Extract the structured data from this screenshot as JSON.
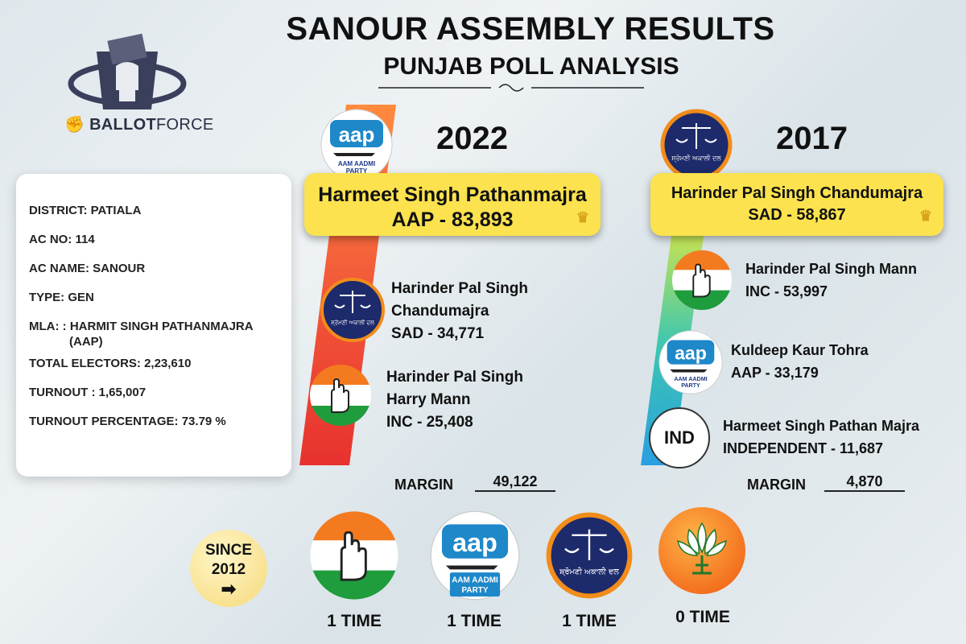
{
  "header": {
    "title": "SANOUR ASSEMBLY RESULTS",
    "subtitle": "PUNJAB POLL ANALYSIS"
  },
  "brand": {
    "part1": "BALLOT",
    "part2": "FORCE"
  },
  "info": {
    "district": "DISTRICT: PATIALA",
    "ac_no": "AC NO: 114",
    "ac_name": "AC NAME: SANOUR",
    "type": "TYPE:  GEN",
    "mla_line1": "MLA:  : HARMIT SINGH PATHANMAJRA",
    "mla_line2": "(AAP)",
    "electors": "TOTAL ELECTORS:  2,23,610",
    "turnout": "TURNOUT : 1,65,007",
    "turnout_pct": "TURNOUT PERCENTAGE: 73.79   %"
  },
  "logos": {
    "aap_main": "aap",
    "aap_small1": "AAM AADMI",
    "aap_small2": "PARTY",
    "sad_text": "ਸ਼੍ਰੋਮਣੀ ਅਕਾਲੀ ਦਲ",
    "ind": "IND"
  },
  "y2022": {
    "year": "2022",
    "winner_name": "Harmeet Singh Pathanmajra",
    "winner_votes": "AAP - 83,893",
    "others": [
      {
        "line1": "Harinder Pal Singh",
        "line2": "Chandumajra",
        "line3": "SAD - 34,771"
      },
      {
        "line1": "Harinder Pal Singh",
        "line2": "Harry Mann",
        "line3": "INC - 25,408"
      }
    ],
    "margin_label": "MARGIN",
    "margin_value": "49,122"
  },
  "y2017": {
    "year": "2017",
    "winner_name": "Harinder Pal Singh Chandumajra",
    "winner_votes": "SAD - 58,867",
    "others": [
      {
        "line1": "Harinder Pal Singh Mann",
        "line2": "INC - 53,997"
      },
      {
        "line1": "Kuldeep Kaur Tohra",
        "line2": "AAP - 33,179"
      },
      {
        "line1": "Harmeet Singh Pathan Majra",
        "line2": "INDEPENDENT - 11,687"
      }
    ],
    "margin_label": "MARGIN",
    "margin_value": "4,870"
  },
  "since": {
    "line1": "SINCE",
    "line2": "2012",
    "parties": [
      {
        "party": "INC",
        "times": "1 TIME"
      },
      {
        "party": "AAP",
        "times": "1 TIME"
      },
      {
        "party": "SAD",
        "times": "1 TIME"
      },
      {
        "party": "BJP",
        "times": "0 TIME"
      }
    ]
  },
  "colors": {
    "winner_bg": "#fbe24e",
    "aap_blue": "#1e88c9",
    "sad_navy": "#1d2a6b",
    "sad_ring": "#f28c1a",
    "inc_saffron": "#f47a20",
    "inc_green": "#1f9c3c",
    "bjp_orange": "#f7931e"
  }
}
